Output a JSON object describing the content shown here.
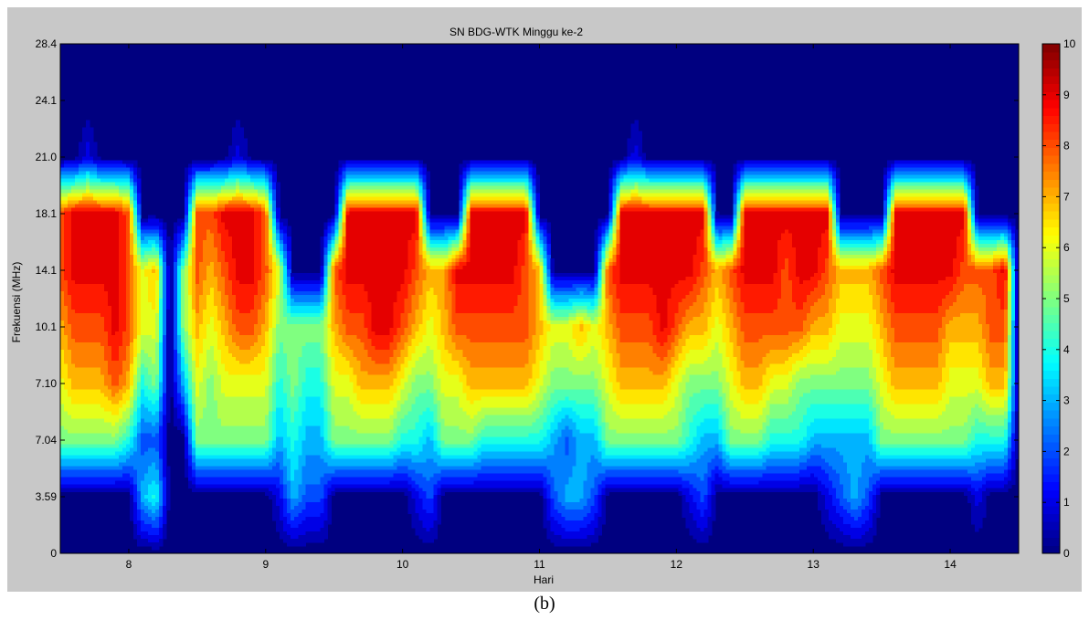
{
  "caption": "(b)",
  "chart_data": {
    "type": "heatmap",
    "subtype": "filled-contour",
    "title": "SN BDG-WTK Minggu ke-2",
    "xlabel": "Hari",
    "ylabel": "Frekuensi (MHz)",
    "xlim": [
      7.5,
      14.5
    ],
    "x_ticks": [
      8,
      9,
      10,
      11,
      12,
      13,
      14
    ],
    "y_ticks": [
      "0",
      "3.59",
      "7.04",
      "7.10",
      "10.1",
      "14.1",
      "18.1",
      "21.0",
      "24.1",
      "28.4"
    ],
    "colorbar": {
      "range": [
        0,
        10
      ],
      "ticks": [
        0,
        1,
        2,
        3,
        4,
        5,
        6,
        7,
        8,
        9,
        10
      ],
      "colormap": "jet",
      "position": "right"
    },
    "y_rows": [
      0,
      3.59,
      7.04,
      7.1,
      10.1,
      14.1,
      18.1,
      21.0,
      24.1,
      28.4
    ],
    "x": [
      7.5,
      7.6,
      7.7,
      7.8,
      7.9,
      8.0,
      8.1,
      8.2,
      8.3,
      8.4,
      8.5,
      8.6,
      8.7,
      8.8,
      8.9,
      9.0,
      9.1,
      9.2,
      9.3,
      9.4,
      9.5,
      9.6,
      9.7,
      9.8,
      9.9,
      10.0,
      10.1,
      10.2,
      10.3,
      10.4,
      10.5,
      10.6,
      10.7,
      10.8,
      10.9,
      11.0,
      11.1,
      11.2,
      11.3,
      11.4,
      11.5,
      11.6,
      11.7,
      11.8,
      11.9,
      12.0,
      12.1,
      12.2,
      12.3,
      12.4,
      12.5,
      12.6,
      12.7,
      12.8,
      12.9,
      13.0,
      13.1,
      13.2,
      13.3,
      13.4,
      13.5,
      13.6,
      13.7,
      13.8,
      13.9,
      14.0,
      14.1,
      14.2,
      14.3,
      14.4,
      14.5
    ],
    "values": [
      [
        0,
        0,
        0,
        0,
        0,
        0,
        0,
        0,
        0,
        0,
        0,
        0,
        0,
        0,
        0,
        0,
        0,
        0,
        0,
        0,
        0,
        0,
        0,
        0,
        0,
        0,
        0,
        0,
        0,
        0,
        0,
        0,
        0,
        0,
        0,
        0,
        0,
        0,
        0,
        0,
        0,
        0,
        0,
        0,
        0,
        0,
        0,
        0,
        0,
        0,
        0,
        0,
        0,
        0,
        0,
        0,
        0,
        0,
        0,
        0,
        0,
        0,
        0,
        0,
        0,
        0,
        0,
        0,
        0,
        0,
        0
      ],
      [
        0,
        0,
        0,
        0,
        0,
        0,
        3,
        4,
        0,
        0,
        0,
        0,
        0,
        0,
        0,
        0,
        1,
        3,
        2,
        2,
        0,
        0,
        0,
        0,
        0,
        0,
        1,
        2,
        0,
        0,
        0,
        0,
        0,
        0,
        0,
        0,
        2,
        3,
        3,
        2,
        0,
        0,
        0,
        0,
        0,
        0,
        1,
        2,
        0,
        0,
        0,
        0,
        0,
        0,
        0,
        0,
        1,
        2,
        3,
        2,
        0,
        0,
        0,
        0,
        0,
        0,
        0,
        1,
        0,
        0,
        0
      ],
      [
        5,
        5,
        5,
        5,
        5,
        4,
        2,
        2,
        0,
        0,
        5,
        5,
        5,
        5,
        5,
        5,
        3,
        4,
        3,
        3,
        5,
        5,
        5,
        5,
        5,
        4,
        4,
        3,
        5,
        5,
        5,
        4,
        4,
        4,
        4,
        4,
        3,
        2,
        3,
        3,
        5,
        5,
        5,
        5,
        5,
        5,
        4,
        3,
        3,
        5,
        5,
        5,
        4,
        4,
        4,
        3,
        3,
        3,
        3,
        3,
        5,
        5,
        5,
        5,
        5,
        5,
        5,
        4,
        4,
        4,
        0
      ],
      [
        6,
        7,
        7,
        7,
        8,
        7,
        4,
        5,
        0,
        3,
        6,
        5,
        6,
        6,
        6,
        6,
        4,
        5,
        4,
        4,
        6,
        6,
        7,
        7,
        7,
        6,
        5,
        5,
        6,
        6,
        7,
        7,
        7,
        7,
        7,
        6,
        5,
        5,
        5,
        5,
        6,
        7,
        7,
        7,
        7,
        6,
        5,
        5,
        5,
        6,
        7,
        7,
        6,
        6,
        5,
        5,
        5,
        5,
        5,
        5,
        6,
        7,
        7,
        7,
        7,
        6,
        6,
        6,
        7,
        7,
        0
      ],
      [
        7,
        8,
        8,
        8,
        9,
        8,
        6,
        6,
        0,
        5,
        7,
        6,
        7,
        8,
        8,
        7,
        5,
        5,
        5,
        5,
        7,
        8,
        8,
        9,
        9,
        8,
        7,
        6,
        7,
        8,
        8,
        8,
        8,
        8,
        8,
        7,
        6,
        6,
        7,
        6,
        7,
        8,
        8,
        8,
        9,
        8,
        7,
        7,
        6,
        7,
        8,
        8,
        8,
        8,
        8,
        7,
        7,
        6,
        6,
        6,
        7,
        8,
        8,
        8,
        8,
        7,
        7,
        7,
        8,
        8,
        0
      ],
      [
        8,
        9,
        9,
        9,
        9,
        8,
        6,
        7,
        0,
        5,
        8,
        7,
        8,
        9,
        9,
        8,
        6,
        0,
        0,
        0,
        8,
        9,
        9,
        9,
        9,
        9,
        8,
        7,
        7,
        9,
        9,
        9,
        9,
        9,
        8,
        7,
        0,
        0,
        0,
        0,
        8,
        9,
        9,
        9,
        9,
        9,
        9,
        8,
        7,
        8,
        9,
        9,
        9,
        8,
        9,
        9,
        8,
        7,
        7,
        7,
        8,
        9,
        9,
        9,
        9,
        9,
        8,
        8,
        8,
        9,
        0
      ],
      [
        8,
        9,
        9,
        9,
        9,
        8,
        0,
        0,
        0,
        0,
        8,
        8,
        9,
        9,
        9,
        8,
        0,
        0,
        0,
        0,
        0,
        9,
        9,
        9,
        9,
        9,
        9,
        0,
        0,
        0,
        9,
        9,
        9,
        9,
        9,
        0,
        0,
        0,
        0,
        0,
        0,
        9,
        9,
        9,
        9,
        9,
        9,
        9,
        0,
        0,
        9,
        9,
        9,
        9,
        9,
        9,
        9,
        0,
        0,
        0,
        0,
        9,
        9,
        9,
        9,
        9,
        9,
        0,
        0,
        0,
        0
      ],
      [
        0,
        0,
        1,
        0,
        0,
        0,
        0,
        0,
        0,
        0,
        0,
        0,
        0,
        1,
        0,
        0,
        0,
        0,
        0,
        0,
        0,
        0,
        0,
        0,
        0,
        0,
        0,
        0,
        0,
        0,
        0,
        0,
        0,
        0,
        0,
        0,
        0,
        0,
        0,
        0,
        0,
        0,
        1,
        0,
        0,
        0,
        0,
        0,
        0,
        0,
        0,
        0,
        0,
        0,
        0,
        0,
        0,
        0,
        0,
        0,
        0,
        0,
        0,
        0,
        0,
        0,
        0,
        0,
        0,
        0,
        0
      ],
      [
        0,
        0,
        0,
        0,
        0,
        0,
        0,
        0,
        0,
        0,
        0,
        0,
        0,
        0,
        0,
        0,
        0,
        0,
        0,
        0,
        0,
        0,
        0,
        0,
        0,
        0,
        0,
        0,
        0,
        0,
        0,
        0,
        0,
        0,
        0,
        0,
        0,
        0,
        0,
        0,
        0,
        0,
        0,
        0,
        0,
        0,
        0,
        0,
        0,
        0,
        0,
        0,
        0,
        0,
        0,
        0,
        0,
        0,
        0,
        0,
        0,
        0,
        0,
        0,
        0,
        0,
        0,
        0,
        0,
        0,
        0
      ],
      [
        0,
        0,
        0,
        0,
        0,
        0,
        0,
        0,
        0,
        0,
        0,
        0,
        0,
        0,
        0,
        0,
        0,
        0,
        0,
        0,
        0,
        0,
        0,
        0,
        0,
        0,
        0,
        0,
        0,
        0,
        0,
        0,
        0,
        0,
        0,
        0,
        0,
        0,
        0,
        0,
        0,
        0,
        0,
        0,
        0,
        0,
        0,
        0,
        0,
        0,
        0,
        0,
        0,
        0,
        0,
        0,
        0,
        0,
        0,
        0,
        0,
        0,
        0,
        0,
        0,
        0,
        0,
        0,
        0,
        0,
        0
      ]
    ]
  }
}
